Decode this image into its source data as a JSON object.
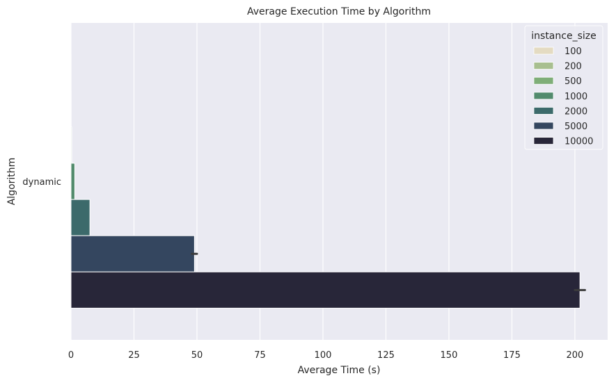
{
  "chart_data": {
    "type": "bar",
    "orientation": "horizontal",
    "title": "Average Execution Time by Algorithm",
    "xlabel": "Average Time (s)",
    "ylabel": "Algorithm",
    "categories": [
      "dynamic"
    ],
    "xlim": [
      0,
      213
    ],
    "xticks": [
      0,
      25,
      50,
      75,
      100,
      125,
      150,
      175,
      200
    ],
    "grid": true,
    "legend": {
      "title": "instance_size",
      "placement": "top-right"
    },
    "series": [
      {
        "name": "100",
        "values": [
          0.01
        ],
        "error": [
          0.0
        ],
        "color": "#e4dbc2"
      },
      {
        "name": "200",
        "values": [
          0.05
        ],
        "error": [
          0.0
        ],
        "color": "#a8bf8f"
      },
      {
        "name": "500",
        "values": [
          0.3
        ],
        "error": [
          0.0
        ],
        "color": "#7fae78"
      },
      {
        "name": "1000",
        "values": [
          1.5
        ],
        "error": [
          0.0
        ],
        "color": "#528b6d"
      },
      {
        "name": "2000",
        "values": [
          7.5
        ],
        "error": [
          0.0
        ],
        "color": "#3c6a6b"
      },
      {
        "name": "5000",
        "values": [
          49.0
        ],
        "error": [
          1.0
        ],
        "color": "#34465f"
      },
      {
        "name": "10000",
        "values": [
          202.0
        ],
        "error": [
          2.0
        ],
        "color": "#282639"
      }
    ]
  }
}
